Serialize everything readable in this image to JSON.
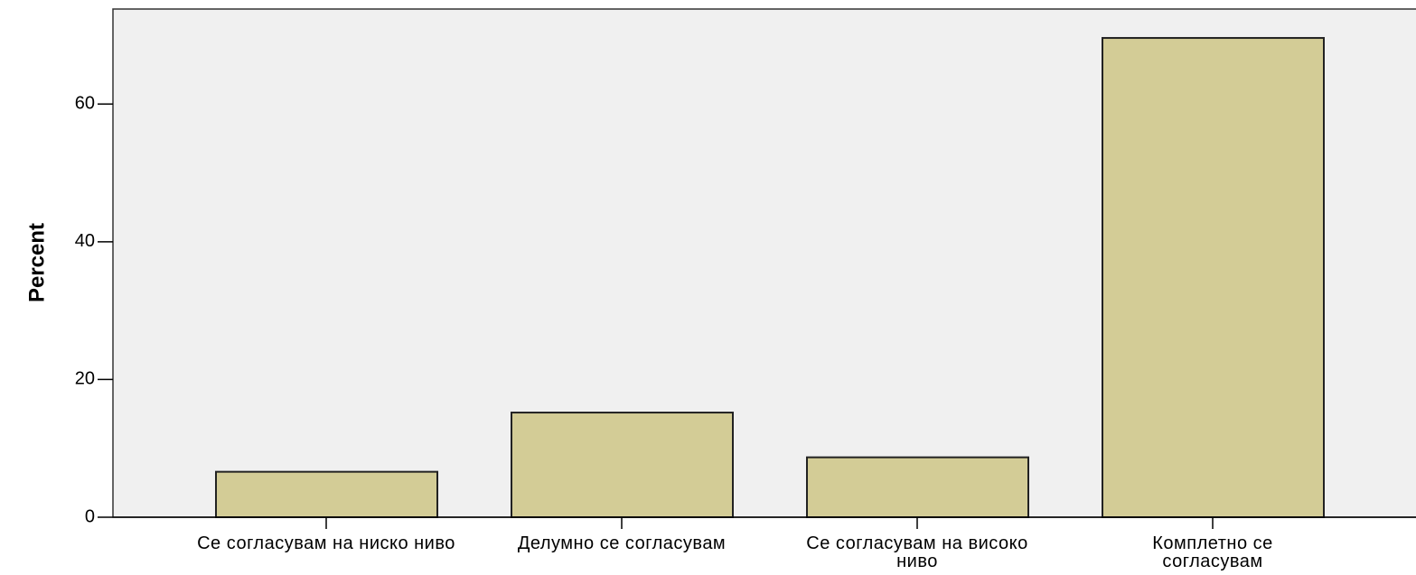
{
  "chart_data": {
    "type": "bar",
    "ylabel": "Percent",
    "categories": [
      "Се согласувам на ниско ниво",
      "Делумно се согласувам",
      "Се согласувам на високо ниво",
      "Комплетно се согласувам"
    ],
    "values": [
      6.6,
      15.2,
      8.7,
      69.6
    ],
    "color": "#d3cc96",
    "ylim": [
      0,
      73.8
    ],
    "yticks": [
      0,
      20,
      40,
      60
    ]
  }
}
